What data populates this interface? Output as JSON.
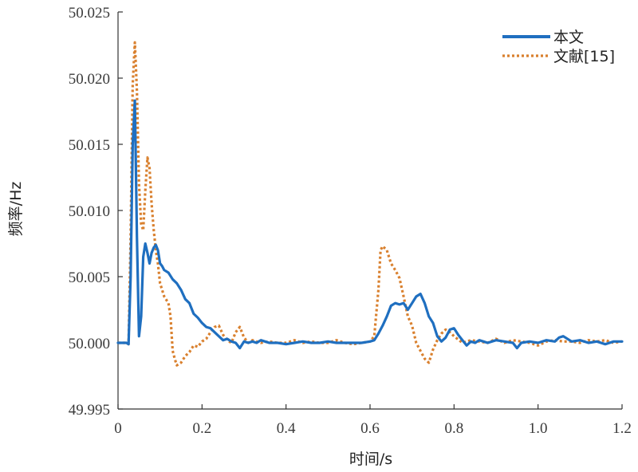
{
  "chart_data": {
    "type": "line",
    "title": "",
    "xlabel": "时间/s",
    "ylabel": "频率/Hz",
    "xlim": [
      0,
      1.2
    ],
    "ylim": [
      49.995,
      50.025
    ],
    "xticks": [
      0,
      0.2,
      0.4,
      0.6,
      0.8,
      1.0,
      1.2
    ],
    "xtick_labels": [
      "0",
      "0.2",
      "0.4",
      "0.6",
      "0.8",
      "1.0",
      "1.2"
    ],
    "yticks": [
      49.995,
      50.0,
      50.005,
      50.01,
      50.015,
      50.02,
      50.025
    ],
    "ytick_labels": [
      "49.995",
      "50.000",
      "50.005",
      "50.010",
      "50.015",
      "50.020",
      "50.025"
    ],
    "grid": false,
    "legend_position": "top-right",
    "series": [
      {
        "name": "本文",
        "color": "#1f6fc0",
        "style": "solid",
        "x": [
          0,
          0.02,
          0.025,
          0.03,
          0.035,
          0.04,
          0.045,
          0.05,
          0.055,
          0.06,
          0.065,
          0.07,
          0.075,
          0.08,
          0.085,
          0.09,
          0.095,
          0.1,
          0.105,
          0.11,
          0.12,
          0.13,
          0.14,
          0.15,
          0.16,
          0.17,
          0.18,
          0.19,
          0.2,
          0.21,
          0.22,
          0.23,
          0.24,
          0.25,
          0.26,
          0.27,
          0.28,
          0.29,
          0.3,
          0.31,
          0.32,
          0.33,
          0.34,
          0.35,
          0.36,
          0.38,
          0.4,
          0.42,
          0.44,
          0.46,
          0.48,
          0.5,
          0.52,
          0.54,
          0.56,
          0.58,
          0.6,
          0.61,
          0.62,
          0.63,
          0.64,
          0.65,
          0.66,
          0.67,
          0.68,
          0.69,
          0.7,
          0.71,
          0.72,
          0.73,
          0.74,
          0.75,
          0.76,
          0.77,
          0.78,
          0.79,
          0.8,
          0.81,
          0.82,
          0.83,
          0.84,
          0.85,
          0.86,
          0.87,
          0.88,
          0.9,
          0.92,
          0.94,
          0.95,
          0.96,
          0.98,
          1.0,
          1.02,
          1.04,
          1.05,
          1.06,
          1.08,
          1.1,
          1.12,
          1.14,
          1.16,
          1.18,
          1.2
        ],
        "y": [
          50.0,
          50.0,
          49.9999,
          50.005,
          50.015,
          50.0183,
          50.008,
          50.0005,
          50.002,
          50.0065,
          50.0075,
          50.0068,
          50.006,
          50.0068,
          50.0072,
          50.0074,
          50.007,
          50.006,
          50.0058,
          50.0055,
          50.0053,
          50.0048,
          50.0045,
          50.004,
          50.0033,
          50.003,
          50.0022,
          50.0019,
          50.0015,
          50.0012,
          50.0011,
          50.0008,
          50.0005,
          50.0002,
          50.0003,
          50.0001,
          50.0,
          49.9996,
          50.0001,
          50.0,
          50.0001,
          50.0,
          50.0002,
          50.0001,
          50.0,
          50.0,
          49.9999,
          50.0,
          50.0001,
          50.0,
          50.0,
          50.0001,
          50.0,
          50.0,
          50.0,
          50.0,
          50.0001,
          50.0002,
          50.0007,
          50.0013,
          50.002,
          50.0028,
          50.003,
          50.0029,
          50.003,
          50.0025,
          50.003,
          50.0035,
          50.0037,
          50.003,
          50.002,
          50.0015,
          50.0005,
          50.0001,
          50.0004,
          50.001,
          50.0011,
          50.0006,
          50.0002,
          49.9998,
          50.0001,
          50.0,
          50.0002,
          50.0001,
          50.0,
          50.0002,
          50.0001,
          50.0,
          49.9996,
          50.0,
          50.0001,
          50.0,
          50.0002,
          50.0001,
          50.0004,
          50.0005,
          50.0001,
          50.0002,
          50.0,
          50.0001,
          49.9999,
          50.0001,
          50.0001
        ]
      },
      {
        "name": "文献[15]",
        "color": "#d9802e",
        "style": "dotted",
        "x": [
          0,
          0.02,
          0.025,
          0.03,
          0.035,
          0.04,
          0.045,
          0.05,
          0.055,
          0.06,
          0.065,
          0.07,
          0.075,
          0.08,
          0.085,
          0.09,
          0.095,
          0.1,
          0.11,
          0.12,
          0.125,
          0.13,
          0.135,
          0.14,
          0.15,
          0.16,
          0.17,
          0.18,
          0.19,
          0.2,
          0.21,
          0.22,
          0.23,
          0.24,
          0.25,
          0.26,
          0.27,
          0.28,
          0.29,
          0.3,
          0.31,
          0.32,
          0.34,
          0.36,
          0.38,
          0.4,
          0.42,
          0.44,
          0.46,
          0.48,
          0.5,
          0.52,
          0.54,
          0.56,
          0.58,
          0.6,
          0.61,
          0.62,
          0.625,
          0.63,
          0.64,
          0.65,
          0.66,
          0.67,
          0.68,
          0.69,
          0.7,
          0.71,
          0.72,
          0.73,
          0.74,
          0.75,
          0.76,
          0.77,
          0.78,
          0.79,
          0.8,
          0.82,
          0.84,
          0.86,
          0.88,
          0.9,
          0.92,
          0.94,
          0.96,
          0.98,
          1.0,
          1.02,
          1.04,
          1.06,
          1.08,
          1.1,
          1.12,
          1.14,
          1.16,
          1.18,
          1.2
        ],
        "y": [
          50.0,
          50.0,
          49.9999,
          50.008,
          50.0195,
          50.0227,
          50.019,
          50.012,
          50.009,
          50.0085,
          50.0115,
          50.014,
          50.0132,
          50.0105,
          50.0085,
          50.007,
          50.006,
          50.0045,
          50.0035,
          50.003,
          50.002,
          49.9994,
          49.9988,
          49.9983,
          49.9985,
          49.999,
          49.9993,
          49.9998,
          49.9997,
          50.0001,
          50.0003,
          50.0008,
          50.0012,
          50.0013,
          50.0006,
          50.0002,
          50.0,
          50.0008,
          50.0012,
          50.0004,
          50.0,
          50.0002,
          50.0,
          50.0001,
          50.0,
          50.0,
          50.0002,
          50.0,
          50.0001,
          50.0,
          50.0,
          50.0002,
          50.0,
          49.9999,
          50.0,
          50.0001,
          50.0005,
          50.004,
          50.007,
          50.0073,
          50.007,
          50.006,
          50.0055,
          50.0049,
          50.0035,
          50.002,
          50.0013,
          50.0,
          49.9994,
          49.9988,
          49.9985,
          49.9995,
          50.0002,
          50.0007,
          50.001,
          50.0008,
          50.0005,
          50.0,
          50.0002,
          50.0001,
          50.0,
          50.0003,
          50.0,
          50.0002,
          50.0001,
          50.0,
          49.9998,
          50.0001,
          50.0002,
          50.0001,
          50.0001,
          50.0,
          50.0002,
          50.0001,
          50.0002,
          50.0,
          50.0001
        ]
      }
    ]
  }
}
